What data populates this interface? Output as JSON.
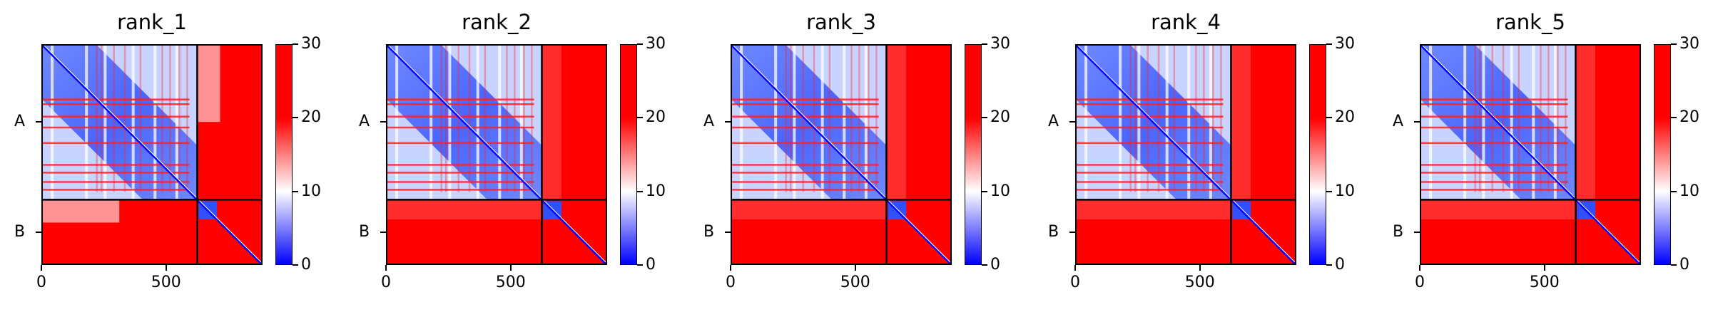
{
  "chart_data": [
    {
      "type": "heatmap",
      "title": "rank_1",
      "chains": [
        "A",
        "B"
      ],
      "chain_boundary": 625,
      "length": 887,
      "xticks": [
        "0",
        "500"
      ],
      "xtick_values": [
        0,
        500
      ],
      "colorbar_ticks": [
        "0",
        "10",
        "20",
        "30"
      ],
      "colorbar_values": [
        0,
        10,
        20,
        30
      ],
      "vmin": 0,
      "vmax": 30,
      "colormap": [
        "#0000ff",
        "#ffffff",
        "#ff0000"
      ],
      "variant": 0
    },
    {
      "type": "heatmap",
      "title": "rank_2",
      "chains": [
        "A",
        "B"
      ],
      "chain_boundary": 625,
      "length": 887,
      "xticks": [
        "0",
        "500"
      ],
      "xtick_values": [
        0,
        500
      ],
      "colorbar_ticks": [
        "0",
        "10",
        "20",
        "30"
      ],
      "colorbar_values": [
        0,
        10,
        20,
        30
      ],
      "vmin": 0,
      "vmax": 30,
      "colormap": [
        "#0000ff",
        "#ffffff",
        "#ff0000"
      ],
      "variant": 1
    },
    {
      "type": "heatmap",
      "title": "rank_3",
      "chains": [
        "A",
        "B"
      ],
      "chain_boundary": 625,
      "length": 887,
      "xticks": [
        "0",
        "500"
      ],
      "xtick_values": [
        0,
        500
      ],
      "colorbar_ticks": [
        "0",
        "10",
        "20",
        "30"
      ],
      "colorbar_values": [
        0,
        10,
        20,
        30
      ],
      "vmin": 0,
      "vmax": 30,
      "colormap": [
        "#0000ff",
        "#ffffff",
        "#ff0000"
      ],
      "variant": 1
    },
    {
      "type": "heatmap",
      "title": "rank_4",
      "chains": [
        "A",
        "B"
      ],
      "chain_boundary": 625,
      "length": 887,
      "xticks": [
        "0",
        "500"
      ],
      "xtick_values": [
        0,
        500
      ],
      "colorbar_ticks": [
        "0",
        "10",
        "20",
        "30"
      ],
      "colorbar_values": [
        0,
        10,
        20,
        30
      ],
      "vmin": 0,
      "vmax": 30,
      "colormap": [
        "#0000ff",
        "#ffffff",
        "#ff0000"
      ],
      "variant": 1
    },
    {
      "type": "heatmap",
      "title": "rank_5",
      "chains": [
        "A",
        "B"
      ],
      "chain_boundary": 625,
      "length": 887,
      "xticks": [
        "0",
        "500"
      ],
      "xtick_values": [
        0,
        500
      ],
      "colorbar_ticks": [
        "0",
        "10",
        "20",
        "30"
      ],
      "colorbar_values": [
        0,
        10,
        20,
        30
      ],
      "vmin": 0,
      "vmax": 30,
      "colormap": [
        "#0000ff",
        "#ffffff",
        "#ff0000"
      ],
      "variant": 1
    }
  ]
}
